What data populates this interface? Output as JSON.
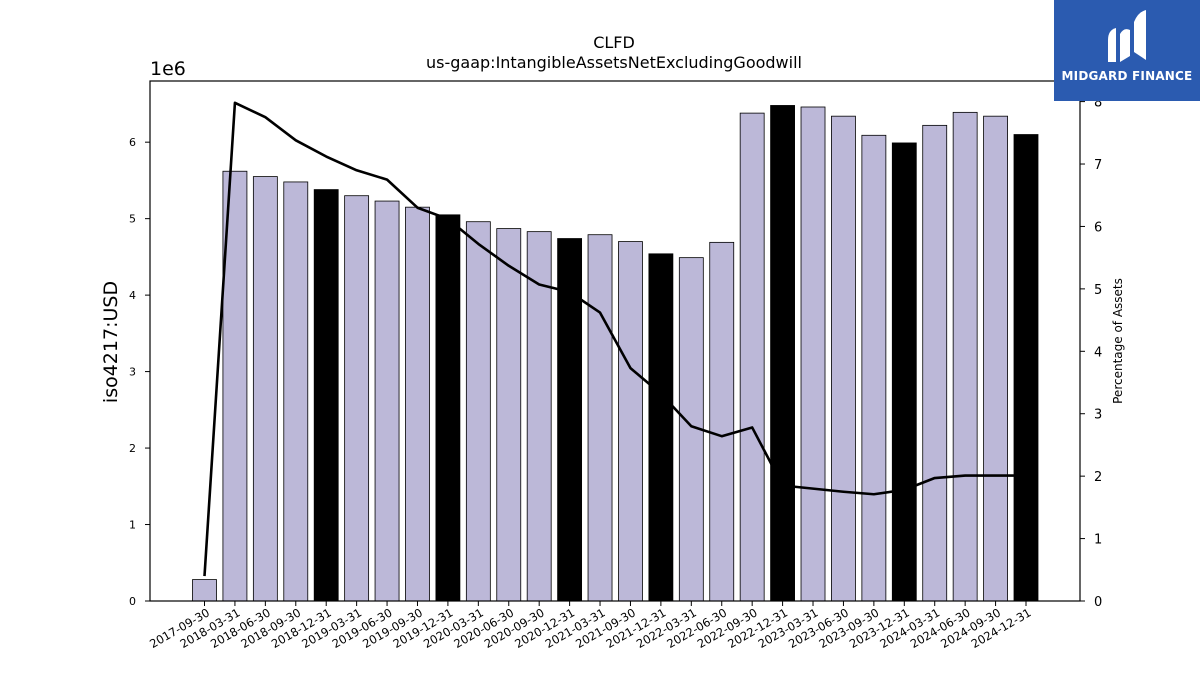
{
  "chart_data": {
    "type": "bar",
    "title": "CLFD",
    "subtitle": "us-gaap:IntangibleAssetsNetExcludingGoodwill",
    "ylabel": "iso4217:USD",
    "y_exponent_label": "1e6",
    "y2label": "Percentage of Assets",
    "ylim": [
      0,
      6800000
    ],
    "y2lim": [
      0,
      8.33
    ],
    "yticks": [
      "0",
      "1",
      "2",
      "3",
      "4",
      "5",
      "6"
    ],
    "y2ticks": [
      "0",
      "1",
      "2",
      "3",
      "4",
      "5",
      "6",
      "7",
      "8"
    ],
    "grid": false,
    "bar_colors": {
      "quarter": "#bcb8d8",
      "year_end": "#000000"
    },
    "line_color": "#000000",
    "categories": [
      "2017-09-30",
      "2018-03-31",
      "2018-06-30",
      "2018-09-30",
      "2018-12-31",
      "2019-03-31",
      "2019-06-30",
      "2019-09-30",
      "2019-12-31",
      "2020-03-31",
      "2020-06-30",
      "2020-09-30",
      "2020-12-31",
      "2021-03-31",
      "2021-09-30",
      "2021-12-31",
      "2022-03-31",
      "2022-06-30",
      "2022-09-30",
      "2022-12-31",
      "2023-03-31",
      "2023-06-30",
      "2023-09-30",
      "2023-12-31",
      "2024-03-31",
      "2024-06-30",
      "2024-09-30",
      "2024-12-31"
    ],
    "series": [
      {
        "values": [
          280000,
          5620000,
          5550000,
          5480000,
          5380000,
          5300000,
          5230000,
          5150000,
          5050000,
          4960000,
          4870000,
          4830000,
          4740000,
          4790000,
          4700000,
          4540000,
          4490000,
          4690000,
          6380000,
          6480000,
          6460000,
          6340000,
          6090000,
          5990000,
          6220000,
          6390000,
          6340000,
          6100000
        ],
        "highlight": [
          false,
          false,
          false,
          false,
          true,
          false,
          false,
          false,
          true,
          false,
          false,
          false,
          true,
          false,
          false,
          true,
          false,
          false,
          false,
          true,
          false,
          false,
          false,
          true,
          false,
          false,
          false,
          true
        ]
      },
      {
        "axis": "right",
        "type": "line",
        "values": [
          0.4,
          7.98,
          7.75,
          7.38,
          7.12,
          6.9,
          6.75,
          6.3,
          6.12,
          5.72,
          5.37,
          5.07,
          4.95,
          4.62,
          3.73,
          3.32,
          2.8,
          2.64,
          2.78,
          1.85,
          1.8,
          1.75,
          1.71,
          1.78,
          1.97,
          2.01,
          2.01,
          2.01
        ]
      }
    ]
  },
  "logo": {
    "text": "MIDGARD FINANCE"
  }
}
